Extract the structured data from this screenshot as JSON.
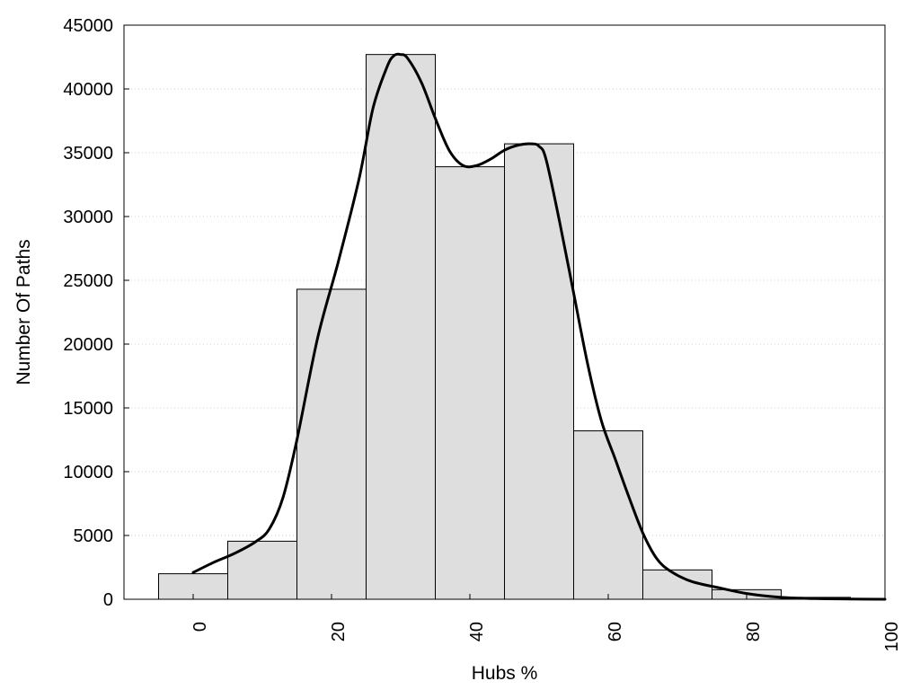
{
  "chart_data": {
    "type": "bar",
    "title": "",
    "xlabel": "Hubs %",
    "ylabel": "Number Of Paths",
    "xlim": [
      -10,
      100
    ],
    "ylim": [
      0,
      45000
    ],
    "grid": "horizontal dotted",
    "x_ticks": [
      0,
      20,
      40,
      60,
      80,
      100
    ],
    "y_ticks": [
      0,
      5000,
      10000,
      15000,
      20000,
      25000,
      30000,
      35000,
      40000,
      45000
    ],
    "bins": [
      {
        "center": 0,
        "width": 10,
        "value": 2000
      },
      {
        "center": 10,
        "width": 10,
        "value": 4550
      },
      {
        "center": 20,
        "width": 10,
        "value": 24300
      },
      {
        "center": 30,
        "width": 10,
        "value": 42700
      },
      {
        "center": 40,
        "width": 10,
        "value": 33900
      },
      {
        "center": 50,
        "width": 10,
        "value": 35700
      },
      {
        "center": 60,
        "width": 10,
        "value": 13200
      },
      {
        "center": 70,
        "width": 10,
        "value": 2300
      },
      {
        "center": 80,
        "width": 10,
        "value": 750
      },
      {
        "center": 90,
        "width": 10,
        "value": 150
      }
    ],
    "density_curve": {
      "x": [
        0,
        3,
        6,
        9,
        11,
        13,
        15,
        18,
        21,
        24,
        26,
        28,
        29,
        30,
        31,
        33,
        35,
        37,
        39,
        41,
        43,
        45,
        47,
        49,
        50,
        51,
        53,
        55,
        57,
        59,
        61,
        63,
        65,
        67,
        69,
        72,
        76,
        80,
        85,
        90,
        95,
        100
      ],
      "y": [
        2100,
        2900,
        3600,
        4500,
        5500,
        8000,
        12500,
        20500,
        26500,
        33000,
        38500,
        41700,
        42600,
        42700,
        42400,
        40500,
        37700,
        35200,
        34000,
        34000,
        34500,
        35200,
        35600,
        35700,
        35500,
        34500,
        29500,
        24000,
        18500,
        14000,
        11000,
        8000,
        5200,
        3200,
        2200,
        1400,
        900,
        450,
        150,
        50,
        20,
        0
      ]
    }
  }
}
